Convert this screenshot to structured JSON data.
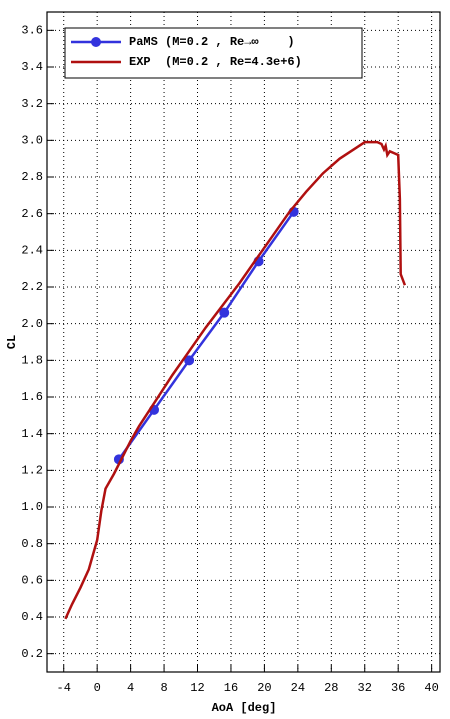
{
  "chart_data": {
    "type": "line",
    "xlabel": "AoA [deg]",
    "ylabel": "CL",
    "xlim": [
      -6,
      41
    ],
    "ylim": [
      0.1,
      3.7
    ],
    "xticks": [
      -4,
      0,
      4,
      8,
      12,
      16,
      20,
      24,
      28,
      32,
      36,
      40
    ],
    "yticks": [
      0.2,
      0.4,
      0.6,
      0.8,
      {
        "value": 1,
        "label": "1.0"
      },
      1.2,
      1.4,
      1.6,
      1.8,
      {
        "value": 2,
        "label": "2.0"
      },
      2.2,
      2.4,
      2.6,
      2.8,
      {
        "value": 3,
        "label": "3.0"
      },
      3.2,
      3.4,
      3.6
    ],
    "grid": true,
    "legend": "upper left",
    "series": [
      {
        "name": "PaMS (M=0.2 , Re→∞    )",
        "color": "#3333dd",
        "marker": "o",
        "x": [
          2.6,
          6.8,
          11,
          15.2,
          19.3,
          23.5
        ],
        "values": [
          1.26,
          1.53,
          1.8,
          2.06,
          2.34,
          2.61
        ]
      },
      {
        "name": "EXP  (M=0.2 , Re=4.3e+6)",
        "color": "#b01010",
        "x": [
          -3.8,
          -3,
          -2,
          -1,
          0,
          0.5,
          1,
          2,
          3,
          4,
          5,
          7,
          9,
          11,
          13,
          15,
          17,
          19,
          21,
          23,
          25,
          27,
          29,
          31,
          32,
          33.5,
          34,
          34.3,
          34.5,
          34.7,
          35,
          35.5,
          36,
          36.2,
          36.3,
          36.8
        ],
        "values": [
          0.39,
          0.47,
          0.56,
          0.66,
          0.82,
          0.98,
          1.1,
          1.18,
          1.27,
          1.36,
          1.44,
          1.58,
          1.72,
          1.85,
          1.98,
          2.1,
          2.22,
          2.35,
          2.48,
          2.61,
          2.72,
          2.82,
          2.9,
          2.96,
          2.99,
          2.99,
          2.98,
          2.95,
          2.97,
          2.92,
          2.94,
          2.93,
          2.92,
          2.68,
          2.27,
          2.21
        ]
      }
    ]
  }
}
